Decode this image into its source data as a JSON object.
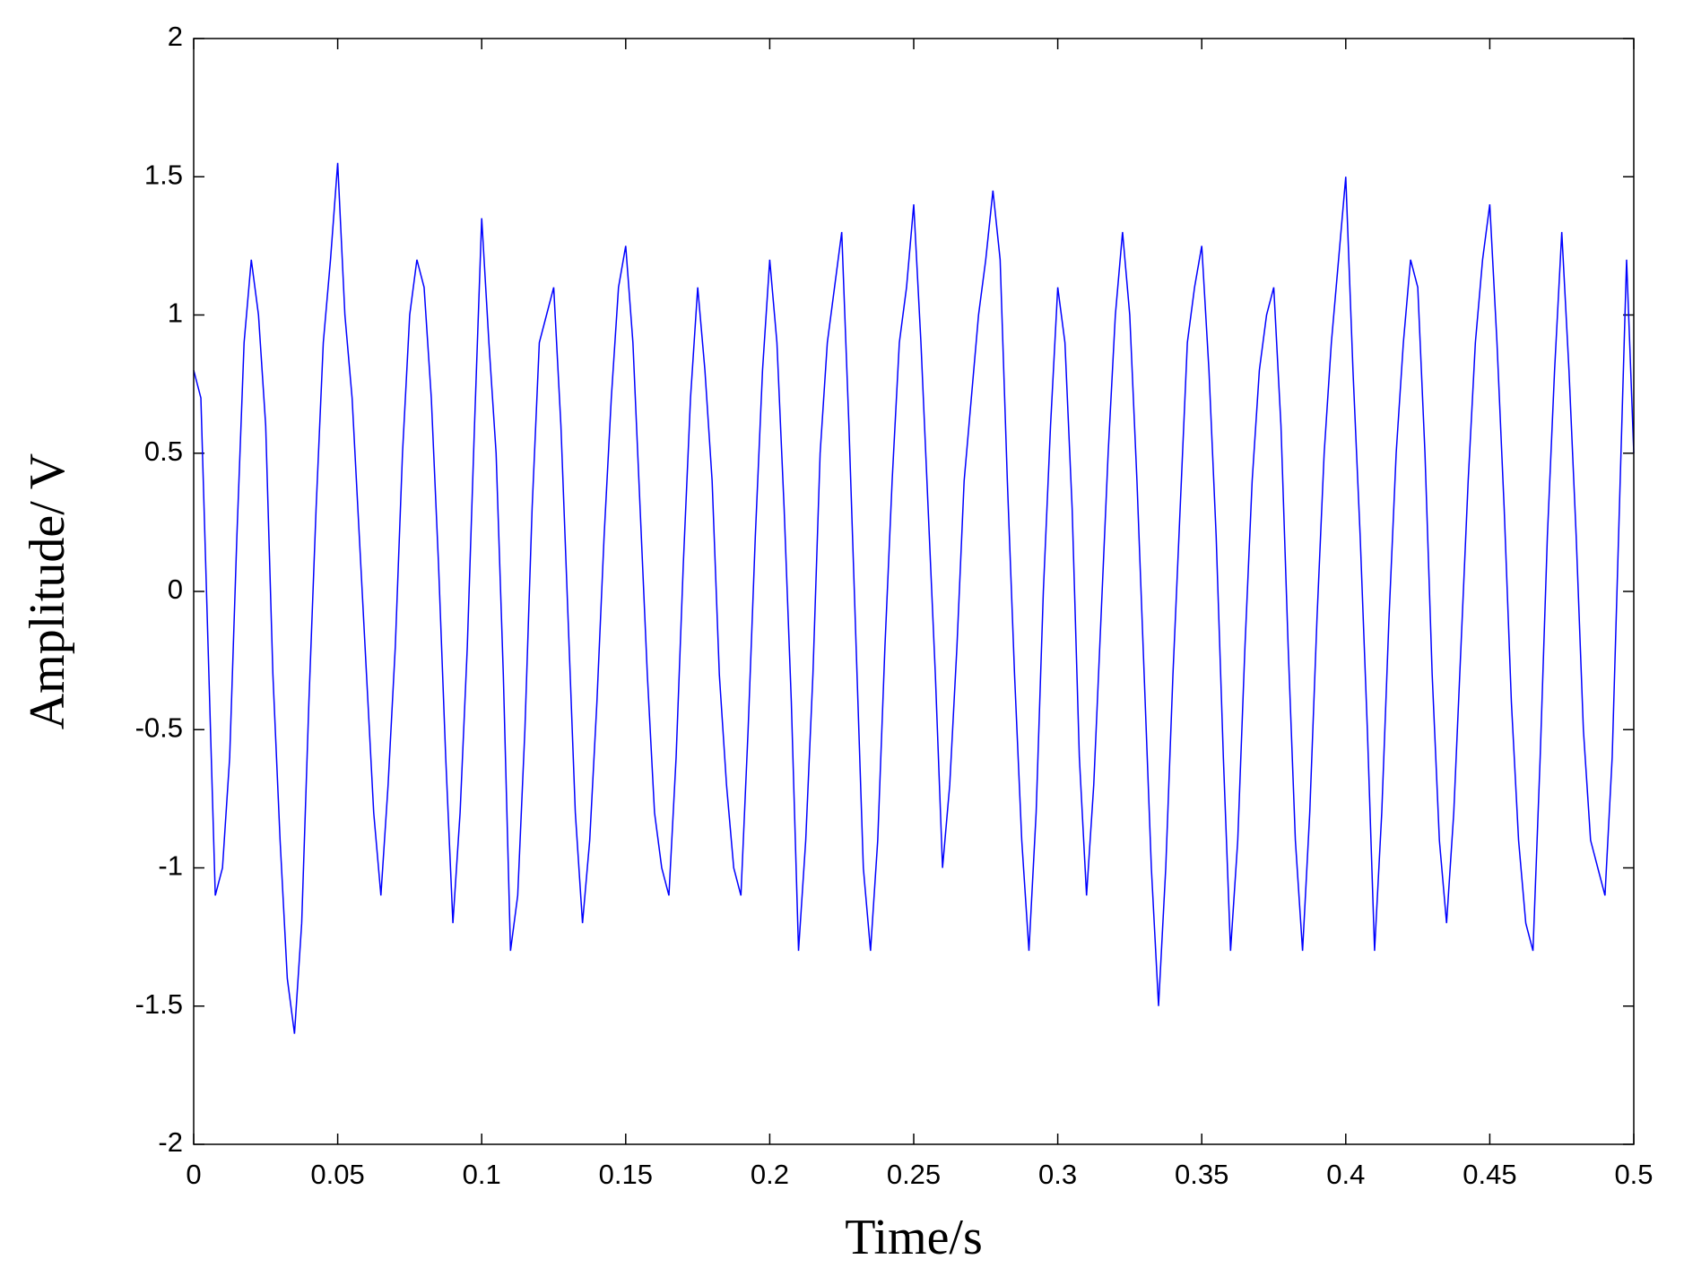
{
  "chart_data": {
    "type": "line",
    "xlabel": "Time/s",
    "ylabel": "Amplitude/ V",
    "xlim": [
      0,
      0.5
    ],
    "ylim": [
      -2,
      2
    ],
    "xticks": [
      0,
      0.05,
      0.1,
      0.15,
      0.2,
      0.25,
      0.3,
      0.35,
      0.4,
      0.45,
      0.5
    ],
    "yticks": [
      -2,
      -1.5,
      -1,
      -0.5,
      0,
      0.5,
      1,
      1.5,
      2
    ],
    "grid": false,
    "color": "#0000ff",
    "x": [
      0,
      0.0025,
      0.005,
      0.0075,
      0.01,
      0.0125,
      0.015,
      0.0175,
      0.02,
      0.0225,
      0.025,
      0.0275,
      0.03,
      0.0325,
      0.035,
      0.0375,
      0.04,
      0.0425,
      0.045,
      0.0475,
      0.05,
      0.0525,
      0.055,
      0.0575,
      0.06,
      0.0625,
      0.065,
      0.0675,
      0.07,
      0.0725,
      0.075,
      0.0775,
      0.08,
      0.0825,
      0.085,
      0.0875,
      0.09,
      0.0925,
      0.095,
      0.0975,
      0.1,
      0.1025,
      0.105,
      0.1075,
      0.11,
      0.1125,
      0.115,
      0.1175,
      0.12,
      0.1225,
      0.125,
      0.1275,
      0.13,
      0.1325,
      0.135,
      0.1375,
      0.14,
      0.1425,
      0.145,
      0.1475,
      0.15,
      0.1525,
      0.155,
      0.1575,
      0.16,
      0.1625,
      0.165,
      0.1675,
      0.17,
      0.1725,
      0.175,
      0.1775,
      0.18,
      0.1825,
      0.185,
      0.1875,
      0.19,
      0.1925,
      0.195,
      0.1975,
      0.2,
      0.2025,
      0.205,
      0.2075,
      0.21,
      0.2125,
      0.215,
      0.2175,
      0.22,
      0.2225,
      0.225,
      0.2275,
      0.23,
      0.2325,
      0.235,
      0.2375,
      0.24,
      0.2425,
      0.245,
      0.2475,
      0.25,
      0.2525,
      0.255,
      0.2575,
      0.26,
      0.2625,
      0.265,
      0.2675,
      0.27,
      0.2725,
      0.275,
      0.2775,
      0.28,
      0.2825,
      0.285,
      0.2875,
      0.29,
      0.2925,
      0.295,
      0.2975,
      0.3,
      0.3025,
      0.305,
      0.3075,
      0.31,
      0.3125,
      0.315,
      0.3175,
      0.32,
      0.3225,
      0.325,
      0.3275,
      0.33,
      0.3325,
      0.335,
      0.3375,
      0.34,
      0.3425,
      0.345,
      0.3475,
      0.35,
      0.3525,
      0.355,
      0.3575,
      0.36,
      0.3625,
      0.365,
      0.3675,
      0.37,
      0.3725,
      0.375,
      0.3775,
      0.38,
      0.3825,
      0.385,
      0.3875,
      0.39,
      0.3925,
      0.395,
      0.3975,
      0.4,
      0.4025,
      0.405,
      0.4075,
      0.41,
      0.4125,
      0.415,
      0.4175,
      0.42,
      0.4225,
      0.425,
      0.4275,
      0.43,
      0.4325,
      0.435,
      0.4375,
      0.44,
      0.4425,
      0.445,
      0.4475,
      0.45,
      0.4525,
      0.455,
      0.4575,
      0.46,
      0.4625,
      0.465,
      0.4675,
      0.47,
      0.4725,
      0.475,
      0.4775,
      0.48,
      0.4825,
      0.485,
      0.4875,
      0.49,
      0.4925,
      0.495,
      0.4975,
      0.5
    ],
    "values": [
      0.8,
      0.7,
      -0.2,
      -1.1,
      -1.0,
      -0.6,
      0.2,
      0.9,
      1.2,
      1.0,
      0.6,
      -0.3,
      -0.9,
      -1.4,
      -1.6,
      -1.2,
      -0.4,
      0.3,
      0.9,
      1.2,
      1.55,
      1.0,
      0.7,
      0.2,
      -0.3,
      -0.8,
      -1.1,
      -0.7,
      -0.2,
      0.5,
      1.0,
      1.2,
      1.1,
      0.7,
      0.1,
      -0.6,
      -1.2,
      -0.8,
      -0.2,
      0.6,
      1.35,
      0.9,
      0.5,
      -0.3,
      -1.3,
      -1.1,
      -0.5,
      0.3,
      0.9,
      1.0,
      1.1,
      0.6,
      -0.1,
      -0.8,
      -1.2,
      -0.9,
      -0.4,
      0.2,
      0.7,
      1.1,
      1.25,
      0.9,
      0.3,
      -0.3,
      -0.8,
      -1.0,
      -1.1,
      -0.6,
      0.1,
      0.7,
      1.1,
      0.8,
      0.4,
      -0.3,
      -0.7,
      -1.0,
      -1.1,
      -0.5,
      0.2,
      0.8,
      1.2,
      0.9,
      0.3,
      -0.4,
      -1.3,
      -0.9,
      -0.3,
      0.5,
      0.9,
      1.1,
      1.3,
      0.6,
      -0.2,
      -1.0,
      -1.3,
      -0.9,
      -0.2,
      0.4,
      0.9,
      1.1,
      1.4,
      0.9,
      0.3,
      -0.3,
      -1.0,
      -0.7,
      -0.2,
      0.4,
      0.7,
      1.0,
      1.2,
      1.45,
      1.2,
      0.4,
      -0.3,
      -0.9,
      -1.3,
      -0.8,
      0.0,
      0.6,
      1.1,
      0.9,
      0.3,
      -0.6,
      -1.1,
      -0.7,
      -0.1,
      0.5,
      1.0,
      1.3,
      1.0,
      0.4,
      -0.3,
      -1.0,
      -1.5,
      -1.0,
      -0.3,
      0.3,
      0.9,
      1.1,
      1.25,
      0.8,
      0.2,
      -0.6,
      -1.3,
      -0.9,
      -0.2,
      0.4,
      0.8,
      1.0,
      1.1,
      0.6,
      -0.2,
      -0.9,
      -1.3,
      -0.8,
      -0.1,
      0.5,
      0.9,
      1.2,
      1.5,
      0.8,
      0.2,
      -0.5,
      -1.3,
      -0.8,
      -0.1,
      0.5,
      0.9,
      1.2,
      1.1,
      0.5,
      -0.3,
      -0.9,
      -1.2,
      -0.8,
      -0.2,
      0.4,
      0.9,
      1.2,
      1.4,
      0.9,
      0.3,
      -0.4,
      -0.9,
      -1.2,
      -1.3,
      -0.6,
      0.2,
      0.8,
      1.3,
      0.8,
      0.2,
      -0.5,
      -0.9,
      -1.0,
      -1.1,
      -0.6,
      0.3,
      1.2,
      0.5
    ]
  }
}
